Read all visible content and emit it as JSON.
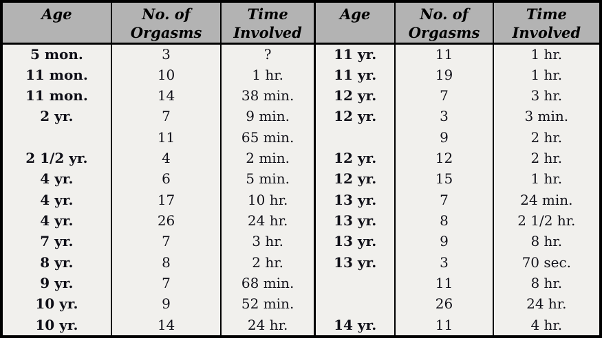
{
  "table": {
    "columns": [
      {
        "label": "Age"
      },
      {
        "label": "No. of\nOrgasms"
      },
      {
        "label": "Time\nInvolved"
      },
      {
        "label": "Age"
      },
      {
        "label": "No. of\nOrgasms"
      },
      {
        "label": "Time\nInvolved"
      }
    ],
    "rows": [
      [
        "5 mon.",
        "3",
        "?",
        "11 yr.",
        "11",
        "1 hr."
      ],
      [
        "11 mon.",
        "10",
        "1 hr.",
        "11 yr.",
        "19",
        "1 hr."
      ],
      [
        "11 mon.",
        "14",
        "38 min.",
        "12 yr.",
        "7",
        "3 hr."
      ],
      [
        "2 yr.",
        "7",
        "9 min.",
        "12 yr.",
        "3",
        "3 min."
      ],
      [
        "",
        "11",
        "65 min.",
        "",
        "9",
        "2 hr."
      ],
      [
        "2 1/2 yr.",
        "4",
        "2 min.",
        "12 yr.",
        "12",
        "2 hr."
      ],
      [
        "4 yr.",
        "6",
        "5 min.",
        "12 yr.",
        "15",
        "1 hr."
      ],
      [
        "4 yr.",
        "17",
        "10 hr.",
        "13 yr.",
        "7",
        "24 min."
      ],
      [
        "4 yr.",
        "26",
        "24 hr.",
        "13 yr.",
        "8",
        "2 1/2 hr."
      ],
      [
        "7 yr.",
        "7",
        "3 hr.",
        "13 yr.",
        "9",
        "8 hr."
      ],
      [
        "8 yr.",
        "8",
        "2 hr.",
        "13 yr.",
        "3",
        "70 sec."
      ],
      [
        "9 yr.",
        "7",
        "68 min.",
        "",
        "11",
        "8 hr."
      ],
      [
        "10 yr.",
        "9",
        "52 min.",
        "",
        "26",
        "24 hr."
      ],
      [
        "10 yr.",
        "14",
        "24 hr.",
        "14 yr.",
        "11",
        "4 hr."
      ]
    ]
  },
  "colors": {
    "header_bg": "#b3b3b3",
    "body_bg": "#f1f0ed",
    "border": "#000000"
  }
}
